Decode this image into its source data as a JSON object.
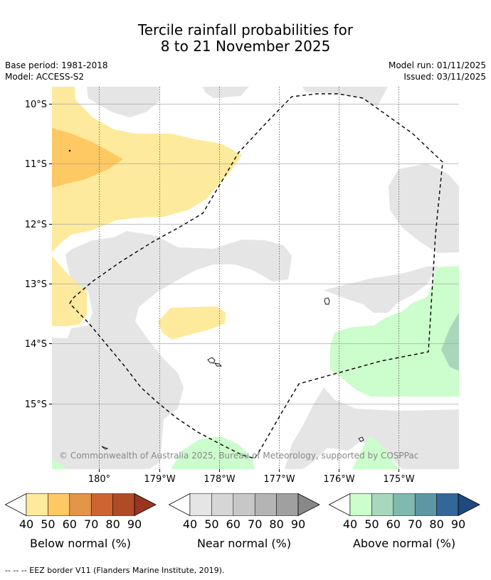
{
  "title": {
    "line1": "Tercile rainfall probabilities for",
    "line2": "8 to 21 November 2025"
  },
  "meta": {
    "base_period": "Base period: 1981-2018",
    "model": "Model: ACCESS-S2",
    "model_run": "Model run: 01/11/2025",
    "issued": "Issued: 03/11/2025"
  },
  "map": {
    "lat_labels": [
      "10°S",
      "11°S",
      "12°S",
      "13°S",
      "14°S",
      "15°S"
    ],
    "lon_labels": [
      "180°",
      "179°W",
      "178°W",
      "177°W",
      "176°W",
      "175°W"
    ],
    "copyright": "© Commonwealth of Australia 2025, Bureau of Meteorology, supported by COSPPac"
  },
  "colorbars": [
    {
      "label": "Below normal (%)",
      "ticks": [
        "40",
        "50",
        "60",
        "70",
        "80",
        "90"
      ],
      "colors": [
        "#fdea9c",
        "#fec863",
        "#e39548",
        "#cd6432",
        "#b04a27",
        "#9b3520"
      ]
    },
    {
      "label": "Near normal (%)",
      "ticks": [
        "40",
        "50",
        "60",
        "70",
        "80",
        "90"
      ],
      "colors": [
        "#e5e5e5",
        "#d6d6d6",
        "#c7c7c7",
        "#b4b4b4",
        "#a0a0a0",
        "#888888"
      ]
    },
    {
      "label": "Above normal (%)",
      "ticks": [
        "40",
        "50",
        "60",
        "70",
        "80",
        "90"
      ],
      "colors": [
        "#ccfdcc",
        "#a8d7bb",
        "#80b9ae",
        "#5c97a3",
        "#336699",
        "#1e4a7d"
      ]
    }
  ],
  "footnote": "-- -- -- EEZ border V11 (Flanders Marine Institute, 2019).",
  "colors": {
    "below_40": "#fdea9c",
    "below_50": "#fec863",
    "near_40": "#e5e5e5",
    "above_40": "#ccfdcc",
    "above_50": "#a8d7bb"
  }
}
